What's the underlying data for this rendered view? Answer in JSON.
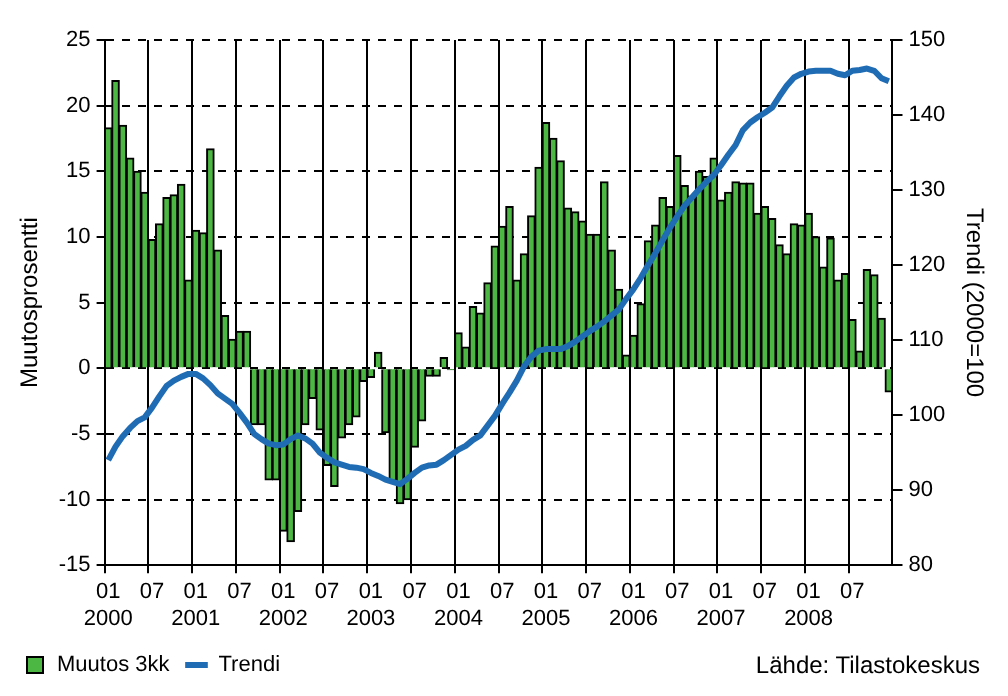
{
  "chart_data": {
    "type": "bar",
    "ylabel": "Muutosprosentti",
    "y2label": "Trendi (2000=100",
    "categories": [
      "01 2000",
      null,
      null,
      null,
      null,
      null,
      "07",
      null,
      null,
      null,
      null,
      null,
      "01 2001",
      null,
      null,
      null,
      null,
      null,
      "07",
      null,
      null,
      null,
      null,
      null,
      "01 2002",
      null,
      null,
      null,
      null,
      null,
      "07",
      null,
      null,
      null,
      null,
      null,
      "01 2003",
      null,
      null,
      null,
      null,
      null,
      "07",
      null,
      null,
      null,
      null,
      null,
      "01 2004",
      null,
      null,
      null,
      null,
      null,
      "07",
      null,
      null,
      null,
      null,
      null,
      "01 2005",
      null,
      null,
      null,
      null,
      null,
      "07",
      null,
      null,
      null,
      null,
      null,
      "01 2006",
      null,
      null,
      null,
      null,
      null,
      "07",
      null,
      null,
      null,
      null,
      null,
      "01 2007",
      null,
      null,
      null,
      null,
      null,
      "07",
      null,
      null,
      null,
      null,
      null,
      "01 2008",
      null,
      null,
      null,
      null,
      null,
      "07",
      null,
      null,
      null,
      null,
      null
    ],
    "series": [
      {
        "name": "Muutos 3kk",
        "color": "#4cb843",
        "values": [
          18.3,
          21.9,
          18.5,
          16.0,
          15.0,
          13.4,
          9.8,
          11.0,
          13.0,
          13.2,
          14.0,
          6.7,
          10.5,
          10.3,
          16.7,
          9.0,
          4.0,
          2.2,
          2.8,
          2.8,
          -4.3,
          -4.3,
          -8.5,
          -8.5,
          -12.4,
          -13.2,
          -10.9,
          -4.3,
          -2.3,
          -4.7,
          -7.4,
          -9.0,
          -5.3,
          -4.3,
          -3.7,
          -1.0,
          -0.7,
          1.2,
          -4.9,
          -8.6,
          -10.3,
          -10.0,
          -6.0,
          -4.0,
          -0.6,
          -0.6,
          0.8,
          -0.1,
          2.7,
          1.6,
          4.7,
          4.2,
          6.5,
          9.3,
          10.8,
          12.3,
          6.7,
          8.7,
          11.6,
          15.3,
          18.7,
          17.5,
          15.8,
          12.2,
          11.9,
          11.2,
          10.2,
          10.2,
          14.2,
          9.0,
          6.0,
          1.0,
          2.5,
          4.9,
          9.7,
          10.9,
          13.0,
          12.3,
          16.2,
          13.9,
          13.1,
          15.0,
          14.6,
          16.0,
          12.8,
          13.4,
          14.2,
          14.1,
          14.1,
          11.8,
          12.3,
          11.4,
          9.4,
          8.7,
          11.0,
          10.9,
          11.8,
          10.0,
          7.7,
          9.9,
          6.7,
          7.2,
          3.7,
          1.3,
          7.5,
          7.1,
          3.8,
          -1.8
        ]
      },
      {
        "name": "Trendi",
        "type": "line",
        "axis": "y2",
        "color": "#1f6cb5",
        "values": [
          94.0,
          95.8,
          97.2,
          98.3,
          99.2,
          99.7,
          101.0,
          102.5,
          103.9,
          104.6,
          105.1,
          105.5,
          105.5,
          104.9,
          104.0,
          102.9,
          102.2,
          101.5,
          100.3,
          99.0,
          97.5,
          96.8,
          96.2,
          96.0,
          96.1,
          96.8,
          97.3,
          96.9,
          96.2,
          95.0,
          94.3,
          93.7,
          93.4,
          93.1,
          93.0,
          92.8,
          92.3,
          91.9,
          91.4,
          91.1,
          90.8,
          91.5,
          92.3,
          93.0,
          93.3,
          93.4,
          94.0,
          94.7,
          95.4,
          95.9,
          96.7,
          97.3,
          98.6,
          99.9,
          101.5,
          103.0,
          104.6,
          106.5,
          107.8,
          108.6,
          108.8,
          108.8,
          108.8,
          109.2,
          109.8,
          110.5,
          111.2,
          111.8,
          112.5,
          113.3,
          114.1,
          115.5,
          116.8,
          118.3,
          120.0,
          121.6,
          123.3,
          125.0,
          126.5,
          127.9,
          129.0,
          130.1,
          131.1,
          132.0,
          133.3,
          134.7,
          136.0,
          138.0,
          139.0,
          139.7,
          140.3,
          141.0,
          142.5,
          143.9,
          145.0,
          145.5,
          145.8,
          145.9,
          145.9,
          145.9,
          145.5,
          145.3,
          145.9,
          146.0,
          146.2,
          145.9,
          144.9,
          144.5
        ]
      }
    ],
    "ylim": [
      -15,
      25
    ],
    "yticks": [
      -15,
      -10,
      -5,
      0,
      5,
      10,
      15,
      20,
      25
    ],
    "y2lim": [
      80,
      150
    ],
    "y2ticks": [
      80,
      90,
      100,
      110,
      120,
      130,
      140,
      150
    ],
    "grid": true,
    "legend": "bottom left",
    "line_style": "solid",
    "marker": "none",
    "annotations": [
      "Lähde: Tilastokeskus"
    ]
  }
}
